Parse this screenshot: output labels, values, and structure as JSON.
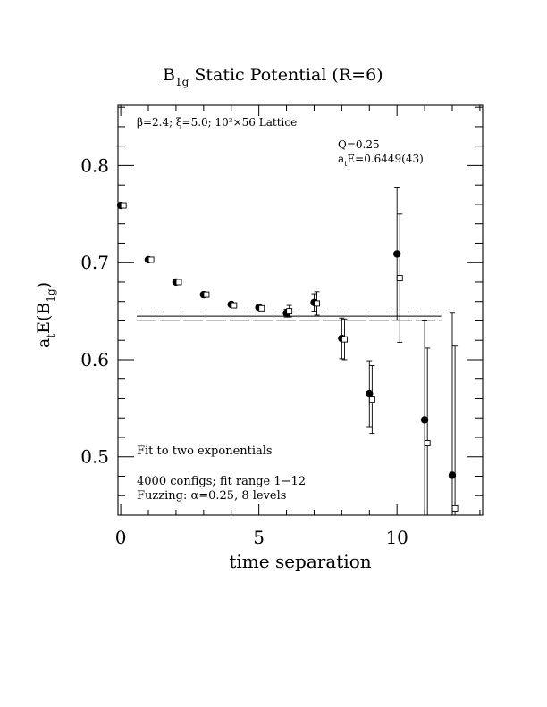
{
  "chart_data": {
    "type": "scatter",
    "title_main": "B",
    "title_sub": "1g",
    "title_rest": " Static Potential (R=6)",
    "xlabel": "time separation",
    "ylabel_a": "a",
    "ylabel_t": "t",
    "ylabel_E": "E(B",
    "ylabel_sub": "1g",
    "ylabel_close": ")",
    "xlim": [
      -0.1,
      13.1
    ],
    "ylim": [
      0.44,
      0.862
    ],
    "xticks_major": [
      0,
      5,
      10
    ],
    "yticks_major": [
      0.5,
      0.6,
      0.7,
      0.8
    ],
    "xtick_labels": [
      "0",
      "5",
      "10"
    ],
    "ytick_labels": [
      "0.5",
      "0.6",
      "0.7",
      "0.8"
    ],
    "annotations": {
      "lattice": "β=2.4; ξ=5.0; 10³×56 Lattice",
      "q": "Q=0.25",
      "ate_prefix": "a",
      "ate_sub": "t",
      "ate_rest": "E=0.6449(43)",
      "fit_desc": "Fit to two exponentials",
      "configs": "4000 configs; fit range 1−12",
      "fuzzing": "Fuzzing: α=0.25, 8 levels"
    },
    "fit": {
      "value": 0.6449,
      "error": 0.0043,
      "x_range": [
        0,
        11.6
      ]
    },
    "series": [
      {
        "marker": "filled-circle",
        "points": [
          {
            "x": 0,
            "y": 0.759,
            "err": 0.001
          },
          {
            "x": 1,
            "y": 0.703,
            "err": 0.001
          },
          {
            "x": 2,
            "y": 0.68,
            "err": 0.001
          },
          {
            "x": 3,
            "y": 0.667,
            "err": 0.002
          },
          {
            "x": 4,
            "y": 0.657,
            "err": 0.002
          },
          {
            "x": 5,
            "y": 0.654,
            "err": 0.003
          },
          {
            "x": 6,
            "y": 0.648,
            "err": 0.004
          },
          {
            "x": 7,
            "y": 0.659,
            "err": 0.009
          },
          {
            "x": 8,
            "y": 0.622,
            "err": 0.021
          },
          {
            "x": 9,
            "y": 0.565,
            "err": 0.034
          },
          {
            "x": 10,
            "y": 0.709,
            "err": 0.068
          },
          {
            "x": 11,
            "y": 0.538,
            "err": 0.102
          },
          {
            "x": 12,
            "y": 0.481,
            "err": 0.167
          }
        ]
      },
      {
        "marker": "open-square",
        "points": [
          {
            "x": 0.1,
            "y": 0.759,
            "err": 0.001
          },
          {
            "x": 1.1,
            "y": 0.703,
            "err": 0.001
          },
          {
            "x": 2.1,
            "y": 0.68,
            "err": 0.001
          },
          {
            "x": 3.1,
            "y": 0.667,
            "err": 0.002
          },
          {
            "x": 4.1,
            "y": 0.656,
            "err": 0.002
          },
          {
            "x": 5.1,
            "y": 0.653,
            "err": 0.003
          },
          {
            "x": 6.1,
            "y": 0.65,
            "err": 0.006
          },
          {
            "x": 7.1,
            "y": 0.658,
            "err": 0.012
          },
          {
            "x": 8.1,
            "y": 0.621,
            "err": 0.021
          },
          {
            "x": 9.1,
            "y": 0.559,
            "err": 0.035
          },
          {
            "x": 10.1,
            "y": 0.684,
            "err": 0.066
          },
          {
            "x": 11.1,
            "y": 0.514,
            "err": 0.098
          },
          {
            "x": 12.1,
            "y": 0.447,
            "err": 0.167
          }
        ]
      }
    ]
  }
}
